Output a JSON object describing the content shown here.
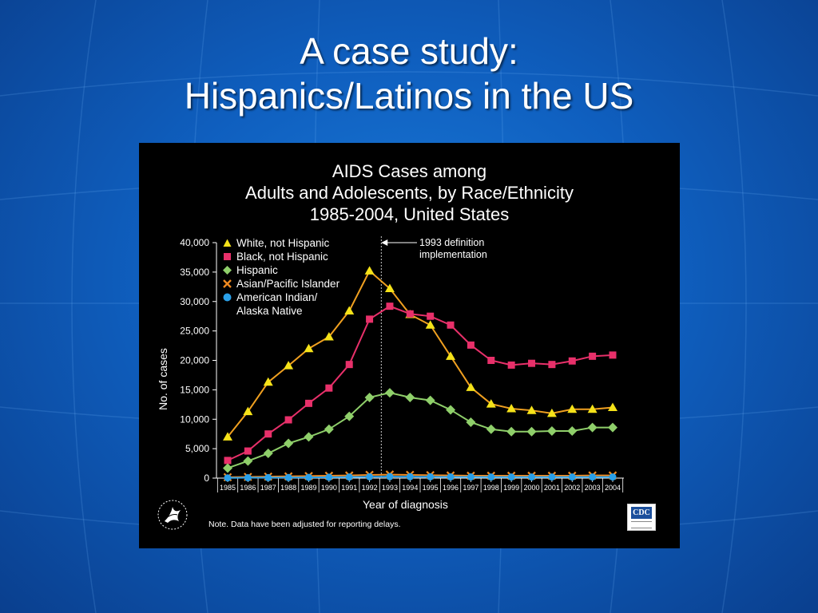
{
  "slide": {
    "title_line1": "A case study:",
    "title_line2": "Hispanics/Latinos in the US"
  },
  "chart_data": {
    "type": "line",
    "title_lines": [
      "AIDS Cases among",
      "Adults and Adolescents, by Race/Ethnicity",
      "1985-2004, United States"
    ],
    "xlabel": "Year of diagnosis",
    "ylabel": "No. of cases",
    "ylim": [
      0,
      40000
    ],
    "yticks": [
      0,
      5000,
      10000,
      15000,
      20000,
      25000,
      30000,
      35000,
      40000
    ],
    "ytick_labels": [
      "0",
      "5,000",
      "10,000",
      "15,000",
      "20,000",
      "25,000",
      "30,000",
      "35,000",
      "40,000"
    ],
    "x": [
      "1985",
      "1986",
      "1987",
      "1988",
      "1989",
      "1990",
      "1991",
      "1992",
      "1993",
      "1994",
      "1995",
      "1996",
      "1997",
      "1998",
      "1999",
      "2000",
      "2001",
      "2002",
      "2003",
      "2004"
    ],
    "grid": false,
    "legend_position": "top-left",
    "series": [
      {
        "name": "White, not Hispanic",
        "marker": "triangle",
        "color": "#f5e219",
        "line_color": "#f0a020",
        "values": [
          7000,
          11300,
          16300,
          19100,
          22000,
          24000,
          28400,
          35200,
          32200,
          27800,
          26000,
          20700,
          15400,
          12600,
          11800,
          11500,
          11000,
          11700,
          11700,
          12000
        ]
      },
      {
        "name": "Black, not Hispanic",
        "marker": "square",
        "color": "#e8306a",
        "line_color": "#e8306a",
        "values": [
          3000,
          4600,
          7500,
          9900,
          12700,
          15300,
          19300,
          27000,
          29200,
          27900,
          27500,
          26000,
          22600,
          20000,
          19200,
          19500,
          19300,
          19900,
          20700,
          20900
        ]
      },
      {
        "name": "Hispanic",
        "marker": "diamond",
        "color": "#8fcf6a",
        "line_color": "#8fcf6a",
        "values": [
          1700,
          2900,
          4200,
          5900,
          7000,
          8300,
          10500,
          13700,
          14500,
          13700,
          13200,
          11600,
          9500,
          8300,
          7900,
          7900,
          8000,
          8000,
          8600,
          8600
        ]
      },
      {
        "name": "Asian/Pacific Islander",
        "marker": "x",
        "color": "#f08a20",
        "line_color": "#f08a20",
        "values": [
          150,
          200,
          250,
          300,
          350,
          400,
          450,
          550,
          600,
          550,
          500,
          450,
          400,
          400,
          400,
          400,
          400,
          400,
          450,
          450
        ]
      },
      {
        "name": "American Indian/ Alaska Native",
        "label_lines": [
          "American Indian/",
          "Alaska Native"
        ],
        "marker": "circle",
        "color": "#2aa0e8",
        "line_color": "#2aa0e8",
        "values": [
          40,
          60,
          80,
          100,
          120,
          150,
          180,
          220,
          250,
          230,
          220,
          210,
          200,
          190,
          190,
          190,
          190,
          190,
          190,
          190
        ]
      }
    ],
    "annotations": [
      {
        "x": "1993",
        "text_lines": [
          "1993 definition",
          "implementation"
        ]
      }
    ],
    "note": "Note. Data have been adjusted for reporting delays."
  },
  "logos": {
    "left": "hhs-logo",
    "right_text": "CDC"
  },
  "colors": {
    "slide_background": "#0f5fbf",
    "panel_background": "#000000",
    "text": "#ffffff"
  }
}
